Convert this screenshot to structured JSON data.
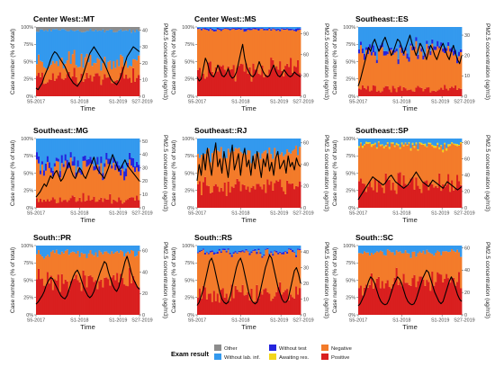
{
  "colors": {
    "Other": "#8c8c8c",
    "Without lab. inf.": "#3399ee",
    "Without test": "#2424dd",
    "Awaiting res.": "#f2d61a",
    "Negative": "#f37b2a",
    "Positive": "#d91f1f",
    "pm_line": "#000000"
  },
  "chart_data": {
    "type": "area",
    "y_left_label": "Case number (% of total)",
    "y_right_label": "PM2.5 concentration (ug/m3)",
    "x_label": "Time",
    "x_ticks": [
      "S5-2017",
      "S1-2018",
      "S1-2019",
      "S27-2019"
    ],
    "y_left_ticks": [
      "0%",
      "25%",
      "50%",
      "75%",
      "100%"
    ],
    "stack_order": [
      "Positive",
      "Negative",
      "Awaiting res.",
      "Without test",
      "Without lab. inf.",
      "Other"
    ],
    "legend": {
      "title": "Exam result",
      "position": "bottom",
      "entries": [
        "Other",
        "Without lab. inf.",
        "Without test",
        "Awaiting res.",
        "Negative",
        "Positive"
      ]
    },
    "panels": [
      {
        "title": "Center West::MT",
        "y2_ticks": [
          "0",
          "10",
          "20",
          "30",
          "40"
        ],
        "y2_max": 42,
        "approx_mean_share": {
          "Positive": 0.28,
          "Negative": 0.22,
          "Without lab. inf.": 0.45,
          "Other": 0.05
        },
        "pm25_series": [
          5,
          4,
          6,
          8,
          12,
          15,
          18,
          22,
          25,
          27,
          26,
          24,
          22,
          20,
          18,
          15,
          12,
          10,
          8,
          7,
          6,
          8,
          10,
          14,
          18,
          22,
          26,
          28,
          30,
          28,
          26,
          24,
          22,
          20,
          17,
          14,
          11,
          9,
          8,
          7,
          9,
          12,
          16,
          20,
          24,
          26,
          28,
          30,
          29,
          28,
          27
        ]
      },
      {
        "title": "Center West::MS",
        "y2_ticks": [
          "0",
          "30",
          "60",
          "90"
        ],
        "y2_max": 100,
        "approx_mean_share": {
          "Positive": 0.38,
          "Negative": 0.58,
          "Without lab. inf.": 0.02,
          "Without test": 0.02
        },
        "pm25_series": [
          28,
          22,
          25,
          40,
          55,
          48,
          35,
          30,
          28,
          35,
          45,
          38,
          30,
          28,
          32,
          40,
          30,
          26,
          28,
          35,
          48,
          62,
          75,
          55,
          42,
          35,
          30,
          28,
          32,
          40,
          50,
          42,
          35,
          30,
          28,
          30,
          38,
          45,
          36,
          30,
          28,
          32,
          38,
          34,
          30,
          28,
          30,
          35,
          32,
          30,
          28
        ]
      },
      {
        "title": "Southeast::ES",
        "y2_ticks": [
          "0",
          "10",
          "20",
          "30"
        ],
        "y2_max": 34,
        "approx_mean_share": {
          "Positive": 0.1,
          "Negative": 0.55,
          "Without lab. inf.": 0.3,
          "Without test": 0.05
        },
        "pm25_series": [
          5,
          8,
          12,
          16,
          20,
          24,
          22,
          26,
          28,
          25,
          22,
          24,
          27,
          29,
          26,
          23,
          20,
          22,
          25,
          28,
          27,
          24,
          21,
          24,
          27,
          30,
          26,
          23,
          20,
          23,
          26,
          24,
          21,
          18,
          22,
          25,
          23,
          20,
          18,
          21,
          24,
          26,
          23,
          20,
          18,
          22,
          25,
          21,
          18,
          16,
          20
        ]
      },
      {
        "title": "Southeast::MG",
        "y2_ticks": [
          "0",
          "10",
          "20",
          "30",
          "40",
          "50"
        ],
        "y2_max": 52,
        "approx_mean_share": {
          "Positive": 0.12,
          "Negative": 0.45,
          "Without lab. inf.": 0.35,
          "Without test": 0.08
        },
        "pm25_series": [
          8,
          10,
          12,
          15,
          18,
          16,
          20,
          24,
          22,
          26,
          28,
          24,
          20,
          22,
          26,
          30,
          34,
          28,
          24,
          22,
          26,
          30,
          28,
          24,
          22,
          26,
          30,
          34,
          38,
          32,
          28,
          26,
          24,
          22,
          26,
          30,
          35,
          40,
          36,
          32,
          28,
          30,
          33,
          36,
          32,
          30,
          28,
          26,
          24,
          22,
          20
        ]
      },
      {
        "title": "Southeast::RJ",
        "y2_ticks": [
          "0",
          "20",
          "40",
          "60"
        ],
        "y2_max": 64,
        "approx_mean_share": {
          "Positive": 0.3,
          "Negative": 0.5,
          "Without lab. inf.": 0.2
        },
        "pm25_series": [
          25,
          40,
          30,
          50,
          35,
          55,
          42,
          30,
          48,
          60,
          38,
          45,
          32,
          52,
          40,
          28,
          45,
          58,
          35,
          42,
          50,
          30,
          46,
          55,
          38,
          44,
          30,
          48,
          36,
          52,
          40,
          28,
          45,
          38,
          50,
          34,
          42,
          30,
          46,
          52,
          36,
          40,
          44,
          32,
          48,
          38,
          42,
          35,
          46,
          40,
          38
        ]
      },
      {
        "title": "Southeast::SP",
        "y2_ticks": [
          "0",
          "20",
          "40",
          "60",
          "80"
        ],
        "y2_max": 85,
        "approx_mean_share": {
          "Positive": 0.35,
          "Negative": 0.55,
          "Without lab. inf.": 0.08,
          "Awaiting res.": 0.02
        },
        "pm25_series": [
          10,
          14,
          18,
          22,
          26,
          30,
          34,
          38,
          36,
          34,
          32,
          30,
          28,
          30,
          34,
          38,
          40,
          36,
          32,
          30,
          28,
          26,
          24,
          26,
          28,
          32,
          36,
          40,
          44,
          40,
          36,
          32,
          30,
          28,
          26,
          30,
          34,
          32,
          30,
          28,
          26,
          24,
          28,
          32,
          30,
          28,
          26,
          24,
          22,
          24,
          26
        ]
      },
      {
        "title": "South::PR",
        "y2_ticks": [
          "0",
          "20",
          "40",
          "60"
        ],
        "y2_max": 65,
        "approx_mean_share": {
          "Positive": 0.5,
          "Negative": 0.4,
          "Without lab. inf.": 0.1
        },
        "pm25_series": [
          10,
          12,
          15,
          18,
          22,
          28,
          32,
          35,
          34,
          30,
          26,
          22,
          18,
          16,
          15,
          18,
          24,
          30,
          36,
          40,
          42,
          38,
          32,
          26,
          22,
          18,
          16,
          18,
          22,
          28,
          34,
          40,
          45,
          50,
          48,
          40,
          34,
          28,
          24,
          22,
          26,
          34,
          42,
          50,
          55,
          48,
          40,
          34,
          30,
          26,
          24
        ]
      },
      {
        "title": "South::RS",
        "y2_ticks": [
          "0",
          "10",
          "20",
          "30",
          "40"
        ],
        "y2_max": 44,
        "approx_mean_share": {
          "Positive": 0.3,
          "Negative": 0.6,
          "Without lab. inf.": 0.08,
          "Without test": 0.02
        },
        "pm25_series": [
          6,
          8,
          12,
          16,
          22,
          28,
          34,
          36,
          32,
          26,
          20,
          14,
          10,
          8,
          7,
          8,
          12,
          18,
          24,
          30,
          34,
          36,
          32,
          26,
          20,
          14,
          10,
          8,
          7,
          8,
          12,
          18,
          24,
          30,
          34,
          38,
          36,
          30,
          24,
          18,
          14,
          10,
          8,
          8,
          10,
          16,
          22,
          28,
          30,
          26,
          20
        ]
      },
      {
        "title": "South::SC",
        "y2_ticks": [
          "0",
          "20",
          "40",
          "60"
        ],
        "y2_max": 62,
        "approx_mean_share": {
          "Positive": 0.48,
          "Negative": 0.42,
          "Without lab. inf.": 0.1
        },
        "pm25_series": [
          8,
          10,
          14,
          18,
          24,
          30,
          34,
          32,
          28,
          22,
          16,
          12,
          10,
          9,
          10,
          14,
          20,
          26,
          30,
          34,
          32,
          28,
          22,
          16,
          12,
          10,
          9,
          10,
          14,
          20,
          26,
          32,
          36,
          40,
          38,
          32,
          26,
          20,
          16,
          12,
          10,
          12,
          18,
          24,
          30,
          34,
          30,
          24,
          18,
          14,
          12
        ]
      }
    ]
  }
}
